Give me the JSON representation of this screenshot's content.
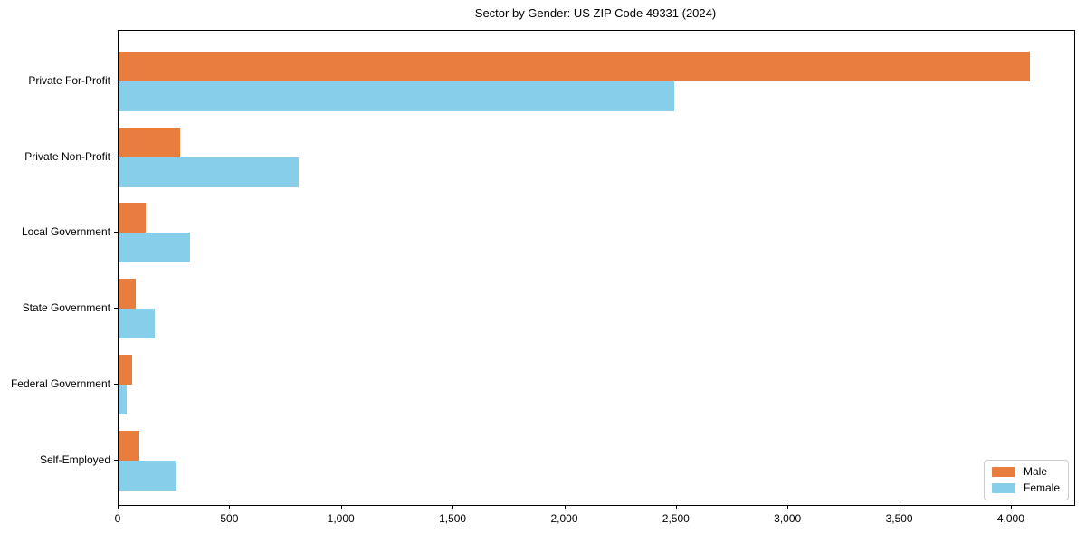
{
  "chart_data": {
    "type": "bar",
    "orientation": "horizontal",
    "title": "Sector by Gender: US ZIP Code 49331 (2024)",
    "categories": [
      "Private For-Profit",
      "Private Non-Profit",
      "Local Government",
      "State Government",
      "Federal Government",
      "Self-Employed"
    ],
    "series": [
      {
        "name": "Male",
        "color": "#e87d3e",
        "values": [
          4080,
          275,
          120,
          75,
          60,
          95
        ]
      },
      {
        "name": "Female",
        "color": "#87ceeb",
        "values": [
          2490,
          805,
          320,
          160,
          35,
          260
        ]
      }
    ],
    "xlabel": "",
    "ylabel": "",
    "xlim": [
      0,
      4280
    ],
    "x_ticks": [
      0,
      500,
      1000,
      1500,
      2000,
      2500,
      3000,
      3500,
      4000
    ],
    "x_tick_labels": [
      "0",
      "500",
      "1,000",
      "1,500",
      "2,000",
      "2,500",
      "3,000",
      "3,500",
      "4,000"
    ],
    "grid": false,
    "legend": {
      "position": "lower right",
      "entries": [
        "Male",
        "Female"
      ]
    },
    "bar_height_units": 0.4
  }
}
